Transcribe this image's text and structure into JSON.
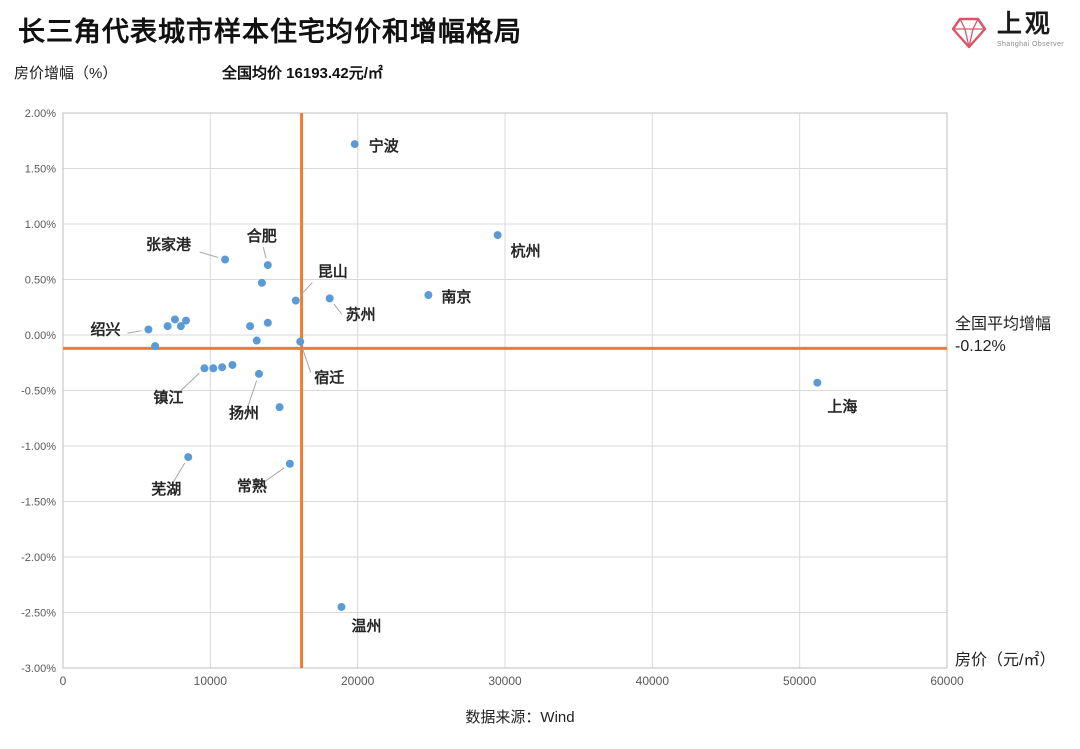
{
  "header": {
    "title": "长三角代表城市样本住宅均价和增幅格局",
    "logo": {
      "name": "上观",
      "subtitle": "Shanghai Observer",
      "accent_color": "#DD5468"
    }
  },
  "annotations": {
    "y_axis_title": "房价增幅（%）",
    "avg_price_note": "全国均价 16193.42元/㎡",
    "avg_growth_line1": "全国平均增幅",
    "avg_growth_line2": "-0.12%",
    "x_axis_title": "房价（元/㎡）"
  },
  "footer": {
    "source": "数据来源：Wind"
  },
  "chart_data": {
    "type": "scatter",
    "title": "长三角代表城市样本住宅均价和增幅格局",
    "xlabel": "房价（元/㎡）",
    "ylabel": "房价增幅（%）",
    "xlim": [
      0,
      60000
    ],
    "ylim": [
      -3.0,
      2.0
    ],
    "grid": true,
    "x_ticks": [
      0,
      10000,
      20000,
      30000,
      40000,
      50000,
      60000
    ],
    "x_tick_labels": [
      "0",
      "10000",
      "20000",
      "30000",
      "40000",
      "50000",
      "60000"
    ],
    "y_ticks": [
      2.0,
      1.5,
      1.0,
      0.5,
      0.0,
      -0.5,
      -1.0,
      -1.5,
      -2.0,
      -2.5,
      -3.0
    ],
    "y_tick_labels": [
      "2.00%",
      "1.50%",
      "1.00%",
      "0.50%",
      "0.00%",
      "-0.50%",
      "-1.00%",
      "-1.50%",
      "-2.00%",
      "-2.50%",
      "-3.00%"
    ],
    "reference_lines": {
      "vertical": {
        "x": 16193.42,
        "label": "全国均价 16193.42元/㎡"
      },
      "horizontal": {
        "y": -0.12,
        "label": "全国平均增幅 -0.12%"
      }
    },
    "colors": {
      "marker": "#5B9BD5",
      "reference": "#ED7D31",
      "grid": "#D9D9D9",
      "border": "#BFBFBF",
      "tick_text": "#595959",
      "leader": "#A6A6A6",
      "label_text": "#262626"
    },
    "points": [
      {
        "city": "宁波",
        "x": 19800,
        "y": 1.72,
        "label_offset": [
          14,
          7
        ],
        "anchor": "start",
        "leader": false
      },
      {
        "city": "杭州",
        "x": 29500,
        "y": 0.9,
        "label_offset": [
          13,
          21
        ],
        "anchor": "start",
        "leader": false
      },
      {
        "city": "南京",
        "x": 24800,
        "y": 0.36,
        "label_offset": [
          13,
          7
        ],
        "anchor": "start",
        "leader": false
      },
      {
        "city": "苏州",
        "x": 18100,
        "y": 0.33,
        "label_offset": [
          16,
          21
        ],
        "anchor": "start",
        "leader": true
      },
      {
        "city": "昆山",
        "x": 15800,
        "y": 0.31,
        "label_offset": [
          22,
          -24
        ],
        "anchor": "start",
        "leader": true
      },
      {
        "city": "合肥",
        "x": 13900,
        "y": 0.63,
        "label_offset": [
          -6,
          -24
        ],
        "anchor": "middle",
        "leader": true
      },
      {
        "city": "张家港",
        "x": 11000,
        "y": 0.68,
        "label_offset": [
          -34,
          -10
        ],
        "anchor": "end",
        "leader": true
      },
      {
        "city": "绍兴",
        "x": 5800,
        "y": 0.05,
        "label_offset": [
          -28,
          5
        ],
        "anchor": "end",
        "leader": true
      },
      {
        "city": "镇江",
        "x": 9600,
        "y": -0.3,
        "label_offset": [
          -36,
          34
        ],
        "anchor": "middle",
        "leader": true
      },
      {
        "city": "扬州",
        "x": 13300,
        "y": -0.35,
        "label_offset": [
          -15,
          44
        ],
        "anchor": "middle",
        "leader": true
      },
      {
        "city": "宿迁",
        "x": 16100,
        "y": -0.06,
        "label_offset": [
          14,
          41
        ],
        "anchor": "start",
        "leader": true
      },
      {
        "city": "上海",
        "x": 51200,
        "y": -0.43,
        "label_offset": [
          10,
          29
        ],
        "anchor": "start",
        "leader": false
      },
      {
        "city": "芜湖",
        "x": 8500,
        "y": -1.1,
        "label_offset": [
          -22,
          37
        ],
        "anchor": "middle",
        "leader": true
      },
      {
        "city": "常熟",
        "x": 15400,
        "y": -1.16,
        "label_offset": [
          -38,
          27
        ],
        "anchor": "middle",
        "leader": true
      },
      {
        "city": "温州",
        "x": 18900,
        "y": -2.45,
        "label_offset": [
          10,
          24
        ],
        "anchor": "start",
        "leader": false
      }
    ],
    "extra_points": [
      [
        13500,
        0.47
      ],
      [
        7100,
        0.08
      ],
      [
        7600,
        0.14
      ],
      [
        8000,
        0.08
      ],
      [
        8350,
        0.13
      ],
      [
        6250,
        -0.1
      ],
      [
        12700,
        0.08
      ],
      [
        13150,
        -0.05
      ],
      [
        13900,
        0.11
      ],
      [
        10200,
        -0.3
      ],
      [
        10800,
        -0.29
      ],
      [
        11500,
        -0.27
      ],
      [
        14700,
        -0.65
      ]
    ]
  }
}
